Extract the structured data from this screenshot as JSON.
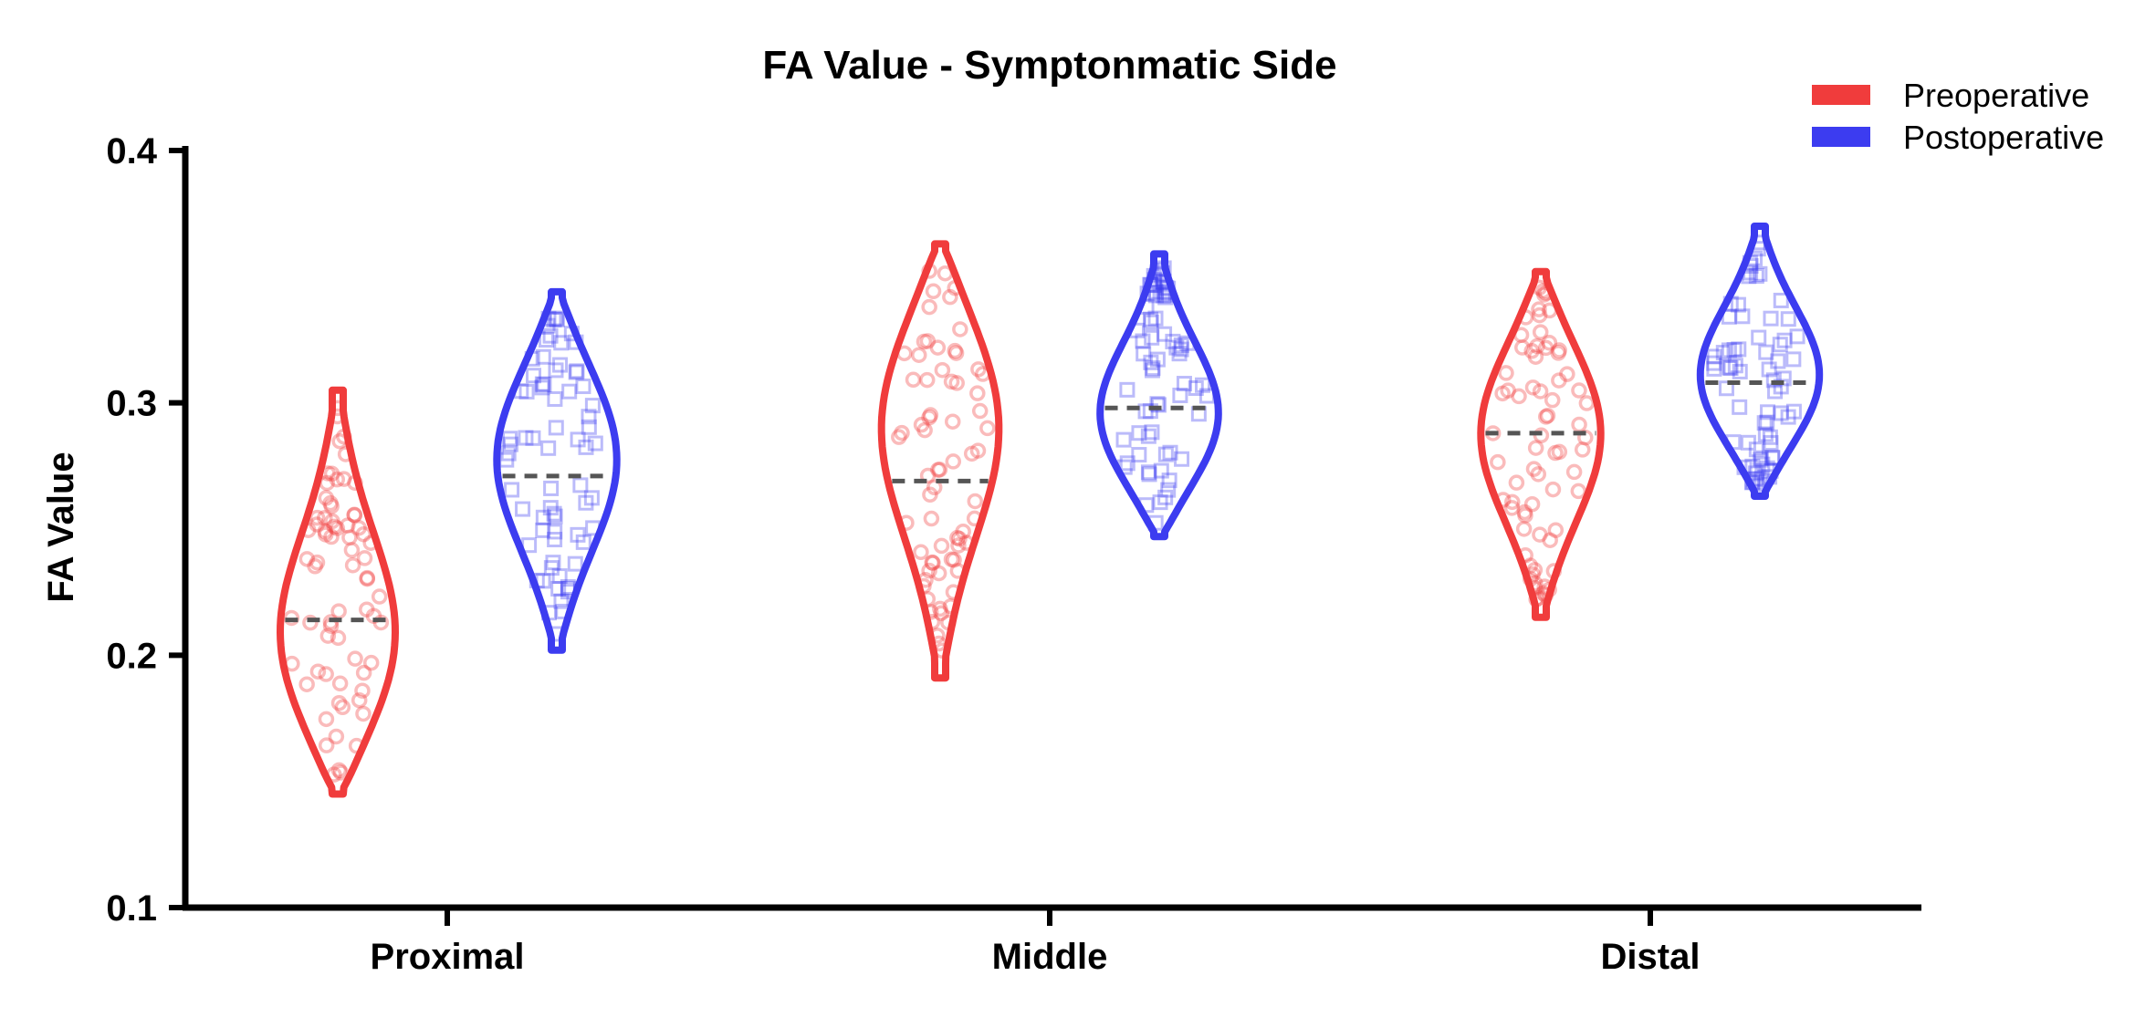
{
  "chart_data": {
    "type": "violin",
    "title": "FA Value - Symptonmatic Side",
    "ylabel": "FA Value",
    "xlabel": "",
    "ylim": [
      0.1,
      0.4
    ],
    "yticks": [
      "0.1",
      "0.2",
      "0.3",
      "0.4"
    ],
    "categories": [
      "Proximal",
      "Middle",
      "Distal"
    ],
    "legend_position": "top-right",
    "series": [
      {
        "name": "Preoperative",
        "color": "#f03c3c",
        "marker": "circle",
        "median": [
          0.214,
          0.269,
          0.288
        ],
        "min": [
          0.145,
          0.191,
          0.215
        ],
        "max": [
          0.305,
          0.363,
          0.352
        ],
        "peak": [
          0.2,
          0.297,
          0.29
        ]
      },
      {
        "name": "Postoperative",
        "color": "#3c3cf0",
        "marker": "square",
        "median": [
          0.271,
          0.298,
          0.308
        ],
        "min": [
          0.202,
          0.247,
          0.263
        ],
        "max": [
          0.344,
          0.359,
          0.37
        ],
        "peak": [
          0.28,
          0.292,
          0.308
        ]
      }
    ]
  }
}
